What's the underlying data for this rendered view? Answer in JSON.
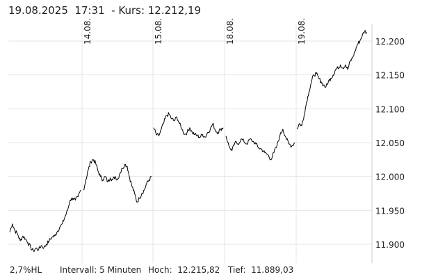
{
  "header": {
    "title": "19.08.2025  17:31  - Kurs: 12.212,19"
  },
  "footer": {
    "range_pct": "2,7%HL",
    "interval": "Intervall: 5 Minuten",
    "high": "Hoch:  12.215,82",
    "low": "Tief:  11.889,03"
  },
  "chart_data": {
    "type": "line",
    "series_color": "#000000",
    "grid": true,
    "ylim": [
      11.87,
      12.23
    ],
    "yticks": [
      11.9,
      11.95,
      12.0,
      12.05,
      12.1,
      12.15,
      12.2
    ],
    "ytick_labels": [
      "11.900",
      "11.950",
      "12.000",
      "12.050",
      "12.100",
      "12.150",
      "12.200"
    ],
    "x_axis": "trading days",
    "day_labels": [
      "14.08.",
      "15.08.",
      "18.08.",
      "19.08."
    ],
    "sessions": [
      {
        "points": [
          11.918,
          11.93,
          11.92,
          11.915,
          11.905,
          11.912,
          11.908,
          11.902,
          11.895,
          11.89,
          11.894,
          11.892,
          11.898,
          11.895,
          11.9,
          11.905,
          11.91,
          11.912,
          11.918,
          11.925,
          11.93,
          11.94,
          11.95,
          11.965,
          11.968,
          11.965,
          11.97,
          11.98
        ]
      },
      {
        "points": [
          11.98,
          11.995,
          12.01,
          12.022,
          12.025,
          12.02,
          12.008,
          12.0,
          11.995,
          12.0,
          11.992,
          11.998,
          11.995,
          12.0,
          11.995,
          12.005,
          12.012,
          12.018,
          12.015,
          11.998,
          11.985,
          11.975,
          11.962,
          11.968,
          11.975,
          11.98,
          11.99,
          11.995,
          12.0
        ]
      },
      {
        "points": [
          12.072,
          12.062,
          12.06,
          12.07,
          12.08,
          12.09,
          12.092,
          12.085,
          12.082,
          12.088,
          12.078,
          12.07,
          12.062,
          12.065,
          12.072,
          12.065,
          12.062,
          12.06,
          12.058,
          12.062,
          12.058,
          12.065,
          12.07,
          12.078,
          12.068,
          12.065,
          12.07,
          12.072
        ]
      },
      {
        "points": [
          12.06,
          12.045,
          12.038,
          12.05,
          12.048,
          12.055,
          12.052,
          12.048,
          12.055,
          12.052,
          12.048,
          12.042,
          12.04,
          12.035,
          12.032,
          12.025,
          12.035,
          12.045,
          12.06,
          12.07,
          12.058,
          12.048,
          12.045,
          12.05
        ]
      },
      {
        "points": [
          12.07,
          12.078,
          12.075,
          12.09,
          12.11,
          12.125,
          12.14,
          12.15,
          12.152,
          12.145,
          12.14,
          12.135,
          12.132,
          12.14,
          12.145,
          12.15,
          12.158,
          12.16,
          12.165,
          12.16,
          12.165,
          12.158,
          12.17,
          12.175,
          12.185,
          12.195,
          12.2,
          12.208,
          12.215,
          12.212
        ]
      }
    ]
  }
}
